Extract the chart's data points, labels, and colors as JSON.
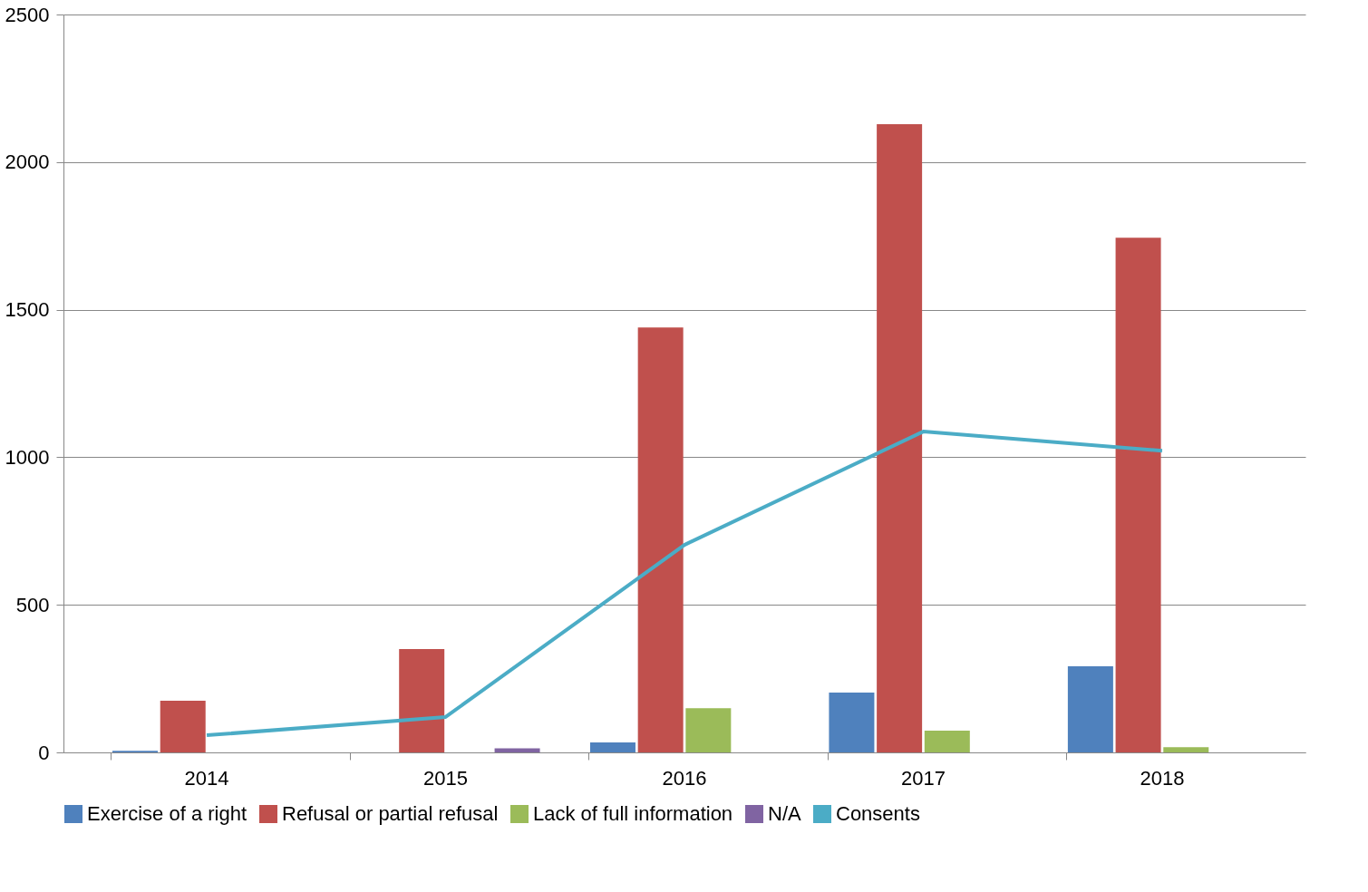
{
  "chart_data": {
    "type": "bar",
    "categories": [
      "2014",
      "2015",
      "2016",
      "2017",
      "2018"
    ],
    "series": [
      {
        "name": "Exercise of a right",
        "color": "#4f81bd",
        "values": [
          5,
          0,
          34,
          203,
          292
        ]
      },
      {
        "name": "Refusal or partial refusal",
        "color": "#c0504d",
        "values": [
          175,
          350,
          1440,
          2128,
          1744
        ]
      },
      {
        "name": "Lack of full information",
        "color": "#9bbb59",
        "values": [
          0,
          0,
          150,
          74,
          18
        ]
      },
      {
        "name": "N/A",
        "color": "#8064a2",
        "values": [
          0,
          14,
          0,
          0,
          0
        ]
      },
      {
        "name": "Consents",
        "color": "#4bacc6",
        "type": "line",
        "values": [
          58,
          120,
          703,
          1087,
          1022
        ]
      }
    ],
    "ylim": [
      0,
      2500
    ],
    "yticks": [
      0,
      500,
      1000,
      1500,
      2000,
      2500
    ],
    "grid": "y",
    "legend": "bottom",
    "marker": "none"
  }
}
